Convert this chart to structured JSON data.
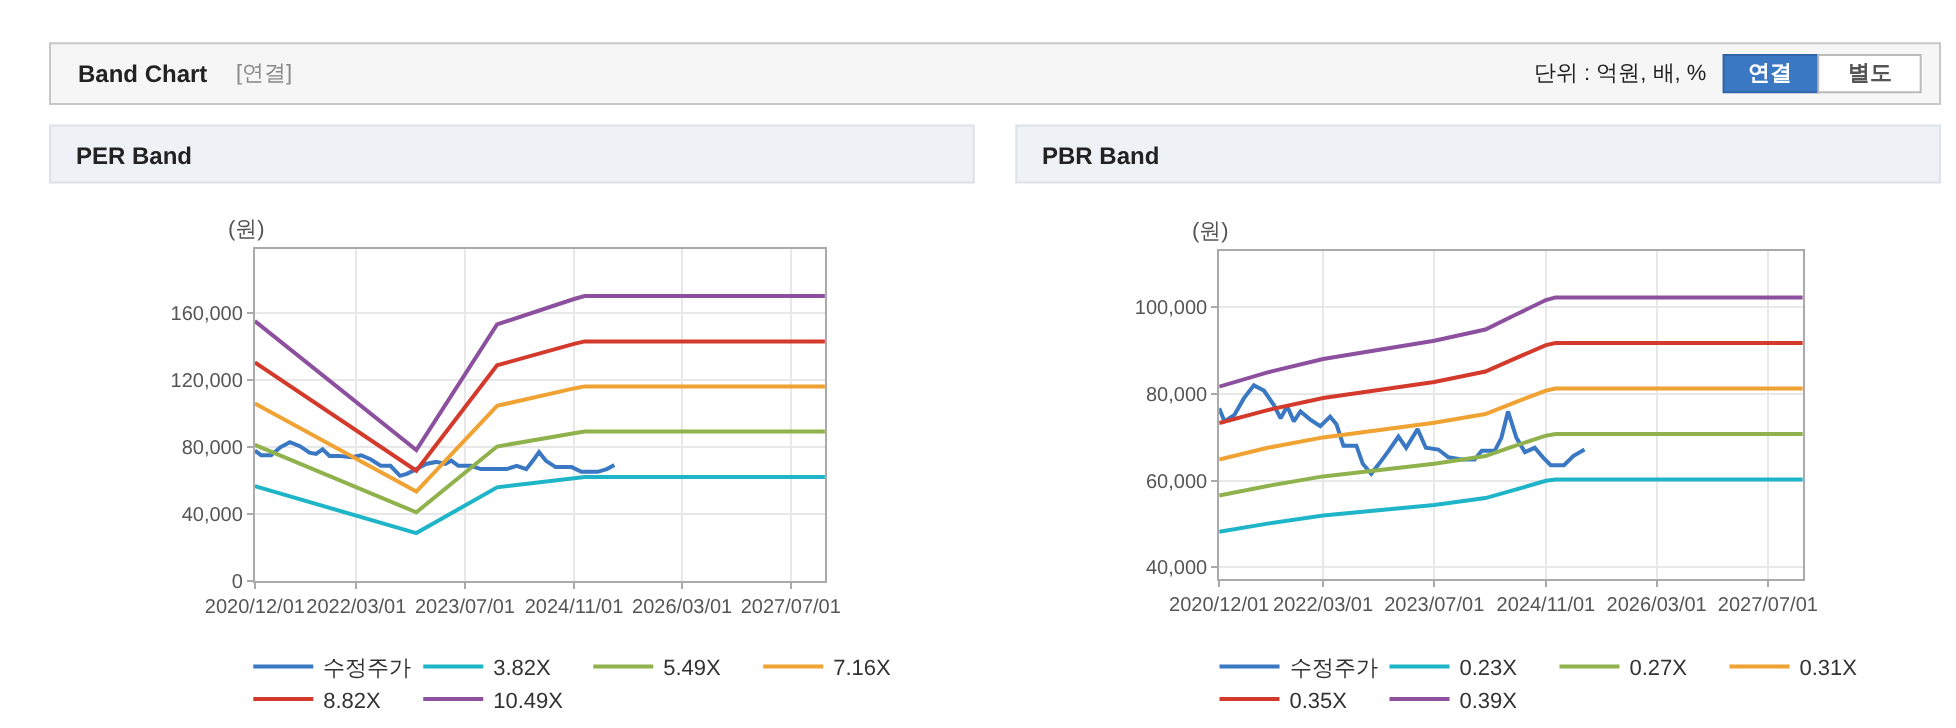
{
  "chart_data": [
    {
      "type": "line",
      "title": "PER Band",
      "ylabel": "(원)",
      "annotations": [
        "Band Chart",
        "[연결]",
        "단위 : 억원, 배, %",
        "연결",
        "별도"
      ],
      "xlim": [
        "2020-12-01",
        "2027-12-01"
      ],
      "xticks": [
        {
          "value": "2020-12-01",
          "label": "2020/12/01"
        },
        {
          "value": "2022-03-01",
          "label": "2022/03/01"
        },
        {
          "value": "2023-07-01",
          "label": "2023/07/01"
        },
        {
          "value": "2024-11-01",
          "label": "2024/11/01"
        },
        {
          "value": "2026-03-01",
          "label": "2026/03/01"
        },
        {
          "value": "2027-07-01",
          "label": "2027/07/01"
        }
      ],
      "ylim": [
        0,
        198000
      ],
      "yticks": [
        0,
        {
          "value": 40000,
          "label": "40,000"
        },
        {
          "value": 80000,
          "label": "80,000"
        },
        {
          "value": 120000,
          "label": "120,000"
        },
        {
          "value": 160000,
          "label": "160,000"
        }
      ],
      "grid": true,
      "legend": "bottom",
      "series": [
        {
          "name": "수정주가",
          "color": "#3a78c3",
          "x": [
            "2020-12-01",
            "2020-12-29",
            "2021-02-12",
            "2021-03-25",
            "2021-05-07",
            "2021-06-21",
            "2021-08-03",
            "2021-09-01",
            "2021-10-01",
            "2021-11-01",
            "2021-12-13",
            "2022-02-09",
            "2022-03-22",
            "2022-05-04",
            "2022-06-18",
            "2022-08-01",
            "2022-09-13",
            "2022-10-13",
            "2022-11-25",
            "2023-01-07",
            "2023-02-21",
            "2023-04-04",
            "2023-05-01",
            "2023-06-01",
            "2023-07-28",
            "2023-09-10",
            "2023-11-07",
            "2024-01-04",
            "2024-02-18",
            "2024-04-01",
            "2024-05-01",
            "2024-05-28",
            "2024-06-27",
            "2024-08-10",
            "2024-10-21",
            "2024-12-04",
            "2025-02-15",
            "2025-03-28",
            "2025-05-01"
          ],
          "values": [
            77600,
            74900,
            74900,
            79600,
            82700,
            80300,
            76400,
            75700,
            78400,
            74500,
            74500,
            73700,
            74900,
            72500,
            68600,
            68600,
            62600,
            63800,
            66600,
            69700,
            70900,
            69700,
            71700,
            68600,
            68600,
            66600,
            66600,
            66600,
            68600,
            66600,
            71700,
            76800,
            71700,
            67800,
            67800,
            65000,
            65000,
            66600,
            69000
          ]
        },
        {
          "name": "3.82X",
          "color": "#1fb5c8",
          "x": [
            "2020-12-01",
            "2022-11-25",
            "2023-11-22",
            "2024-11-01",
            "2024-12-19",
            "2027-12-01"
          ],
          "values": [
            56400,
            28400,
            55700,
            61200,
            61900,
            61900
          ]
        },
        {
          "name": "5.49X",
          "color": "#8fb24d",
          "x": [
            "2020-12-01",
            "2022-11-25",
            "2023-11-22",
            "2024-11-01",
            "2024-12-19",
            "2027-12-01"
          ],
          "values": [
            81100,
            40800,
            80100,
            88000,
            89000,
            89000
          ]
        },
        {
          "name": "7.16X",
          "color": "#f0a232",
          "x": [
            "2020-12-01",
            "2022-11-25",
            "2023-11-22",
            "2024-11-01",
            "2024-12-19",
            "2027-12-01"
          ],
          "values": [
            105800,
            53200,
            104400,
            114800,
            116000,
            116000
          ]
        },
        {
          "name": "8.82X",
          "color": "#d33a2c",
          "x": [
            "2020-12-01",
            "2022-11-25",
            "2023-11-22",
            "2024-11-01",
            "2024-12-19",
            "2027-12-01"
          ],
          "values": [
            130300,
            65600,
            128600,
            141400,
            142900,
            142900
          ]
        },
        {
          "name": "10.49X",
          "color": "#8c509f",
          "x": [
            "2020-12-01",
            "2022-11-25",
            "2023-11-22",
            "2024-11-01",
            "2024-12-19",
            "2027-12-01"
          ],
          "values": [
            155000,
            78000,
            153000,
            168200,
            170000,
            170000
          ]
        }
      ]
    },
    {
      "type": "line",
      "title": "PBR Band",
      "ylabel": "(원)",
      "xlim": [
        "2020-12-01",
        "2027-12-01"
      ],
      "xticks": [
        {
          "value": "2020-12-01",
          "label": "2020/12/01"
        },
        {
          "value": "2022-03-01",
          "label": "2022/03/01"
        },
        {
          "value": "2023-07-01",
          "label": "2023/07/01"
        },
        {
          "value": "2024-11-01",
          "label": "2024/11/01"
        },
        {
          "value": "2026-03-01",
          "label": "2026/03/01"
        },
        {
          "value": "2027-07-01",
          "label": "2027/07/01"
        }
      ],
      "ylim": [
        37400,
        113000
      ],
      "yticks": [
        {
          "value": 40000,
          "label": "40,000"
        },
        {
          "value": 60000,
          "label": "60,000"
        },
        {
          "value": 80000,
          "label": "80,000"
        },
        {
          "value": 100000,
          "label": "100,000"
        }
      ],
      "grid": true,
      "legend": "bottom",
      "series": [
        {
          "name": "수정주가",
          "color": "#3a78c3",
          "x": [
            "2020-12-01",
            "2020-12-24",
            "2021-02-06",
            "2021-03-19",
            "2021-05-02",
            "2021-06-15",
            "2021-07-28",
            "2021-08-27",
            "2021-09-25",
            "2021-10-24",
            "2021-11-22",
            "2022-01-04",
            "2022-02-17",
            "2022-04-01",
            "2022-04-29",
            "2022-05-29",
            "2022-07-25",
            "2022-08-22",
            "2022-09-28",
            "2022-11-01",
            "2022-12-13",
            "2023-01-25",
            "2023-02-28",
            "2023-04-19",
            "2023-05-25",
            "2023-07-19",
            "2023-09-01",
            "2023-10-28",
            "2023-12-25",
            "2024-01-25",
            "2024-03-22",
            "2024-04-20",
            "2024-05-19",
            "2024-06-25",
            "2024-08-01",
            "2024-09-13",
            "2024-10-19",
            "2024-11-22",
            "2025-01-19",
            "2025-03-01",
            "2025-04-19"
          ],
          "values": [
            76700,
            73700,
            75200,
            79000,
            82000,
            80800,
            77500,
            74400,
            77200,
            73700,
            76000,
            74100,
            72600,
            74800,
            73000,
            68100,
            68100,
            63900,
            61600,
            63900,
            66900,
            70200,
            67600,
            71900,
            67600,
            67200,
            65400,
            64900,
            64900,
            66900,
            66900,
            69900,
            76000,
            69900,
            66600,
            67600,
            65400,
            63600,
            63600,
            65700,
            67200
          ]
        },
        {
          "name": "0.23X",
          "color": "#1fb5c8",
          "x": [
            "2020-12-01",
            "2021-07-01",
            "2022-03-01",
            "2023-07-01",
            "2024-02-10",
            "2024-06-05",
            "2024-11-01",
            "2024-12-13",
            "2027-12-01"
          ],
          "values": [
            48200,
            50100,
            52000,
            54400,
            56000,
            57700,
            60000,
            60300,
            60300
          ]
        },
        {
          "name": "0.27X",
          "color": "#8fb24d",
          "x": [
            "2020-12-01",
            "2021-07-01",
            "2022-03-01",
            "2023-07-01",
            "2024-02-10",
            "2024-06-05",
            "2024-11-01",
            "2024-12-13",
            "2027-12-01"
          ],
          "values": [
            56600,
            58800,
            61000,
            63900,
            65700,
            67800,
            70400,
            70800,
            70800
          ]
        },
        {
          "name": "0.31X",
          "color": "#f0a232",
          "x": [
            "2020-12-01",
            "2021-07-01",
            "2022-03-01",
            "2023-07-01",
            "2024-02-10",
            "2024-06-05",
            "2024-11-01",
            "2024-12-13",
            "2027-12-01"
          ],
          "values": [
            64900,
            67600,
            70000,
            73400,
            75400,
            77800,
            80800,
            81300,
            81300
          ]
        },
        {
          "name": "0.35X",
          "color": "#d33a2c",
          "x": [
            "2020-12-01",
            "2021-07-01",
            "2022-03-01",
            "2023-07-01",
            "2024-02-10",
            "2024-06-05",
            "2024-11-01",
            "2024-12-13",
            "2027-12-01"
          ],
          "values": [
            73300,
            76300,
            79100,
            82800,
            85200,
            87900,
            91300,
            91800,
            91800
          ]
        },
        {
          "name": "0.39X",
          "color": "#8c509f",
          "x": [
            "2020-12-01",
            "2021-07-01",
            "2022-03-01",
            "2023-07-01",
            "2024-02-10",
            "2024-06-05",
            "2024-11-01",
            "2024-12-13",
            "2027-12-01"
          ],
          "values": [
            81700,
            85000,
            88100,
            92300,
            94900,
            97900,
            101700,
            102300,
            102300
          ]
        }
      ]
    }
  ]
}
